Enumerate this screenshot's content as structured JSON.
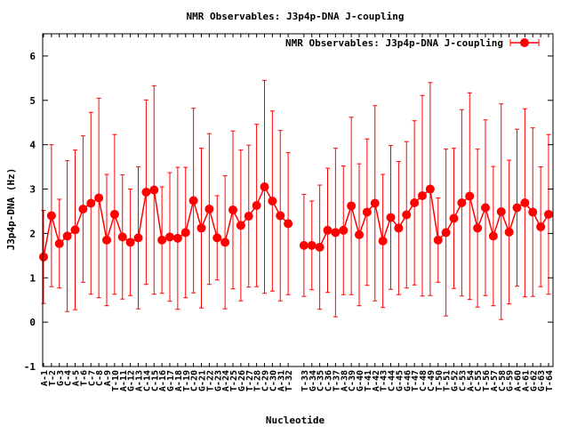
{
  "chart_data": {
    "type": "line",
    "title": "NMR Observables: J3p4p-DNA J-coupling",
    "xlabel": "Nucleotide",
    "ylabel": "J3p4p-DNA (Hz)",
    "ylim": [
      -1,
      6.5
    ],
    "yticks": [
      -1,
      0,
      1,
      2,
      3,
      4,
      5,
      6
    ],
    "grid": false,
    "legend_position": "top-right",
    "colors": {
      "series": "#ff0000",
      "axis": "#000000"
    },
    "categories": [
      "A-1",
      "T-2",
      "G-3",
      "C-4",
      "A-5",
      "T-6",
      "C-7",
      "C-8",
      "A-9",
      "T-10",
      "A-11",
      "G-12",
      "A-13",
      "C-14",
      "C-15",
      "A-16",
      "G-17",
      "A-18",
      "T-19",
      "C-20",
      "G-21",
      "T-22",
      "G-23",
      "A-24",
      "T-25",
      "G-26",
      "T-27",
      "T-28",
      "C-29",
      "C-30",
      "A-31",
      "T-32",
      "",
      "T-33",
      "G-34",
      "C-35",
      "C-36",
      "T-37",
      "A-38",
      "C-39",
      "G-40",
      "T-41",
      "A-42",
      "T-43",
      "C-44",
      "G-45",
      "G-46",
      "T-47",
      "C-48",
      "C-49",
      "T-50",
      "T-51",
      "G-52",
      "C-53",
      "A-54",
      "C-55",
      "T-56",
      "A-57",
      "C-58",
      "G-59",
      "A-60",
      "A-61",
      "G-62",
      "G-63",
      "T-64"
    ],
    "series": [
      {
        "name": "NMR Observables: J3p4p-DNA J-coupling",
        "values": [
          1.47,
          2.4,
          1.77,
          1.94,
          2.08,
          2.55,
          2.68,
          2.8,
          1.85,
          2.43,
          1.92,
          1.8,
          1.9,
          2.93,
          2.98,
          1.85,
          1.92,
          1.89,
          2.02,
          2.74,
          2.12,
          2.55,
          1.9,
          1.8,
          2.53,
          2.18,
          2.39,
          2.63,
          3.05,
          2.73,
          2.4,
          2.22,
          null,
          1.73,
          1.73,
          1.69,
          2.07,
          2.02,
          2.07,
          2.62,
          1.97,
          2.48,
          2.68,
          1.83,
          2.36,
          2.12,
          2.42,
          2.69,
          2.85,
          3.0,
          1.85,
          2.02,
          2.34,
          2.69,
          2.84,
          2.12,
          2.58,
          1.94,
          2.49,
          2.03,
          2.58,
          2.69,
          2.48,
          2.15,
          2.43
        ],
        "errors": [
          1.05,
          1.6,
          1.0,
          1.7,
          1.8,
          1.65,
          2.05,
          2.25,
          1.48,
          1.8,
          1.4,
          1.2,
          1.6,
          2.08,
          2.35,
          1.2,
          1.45,
          1.6,
          1.47,
          2.08,
          1.8,
          1.7,
          0.95,
          1.5,
          1.78,
          1.7,
          1.6,
          1.83,
          2.4,
          2.03,
          1.92,
          1.6,
          null,
          1.15,
          1.0,
          1.4,
          1.4,
          1.9,
          1.45,
          2.0,
          1.6,
          1.65,
          2.2,
          1.5,
          1.62,
          1.5,
          1.65,
          1.85,
          2.26,
          2.4,
          0.95,
          1.88,
          1.58,
          2.1,
          2.33,
          1.78,
          1.98,
          1.57,
          2.43,
          1.62,
          1.77,
          2.12,
          1.9,
          1.35,
          1.8
        ]
      }
    ]
  }
}
